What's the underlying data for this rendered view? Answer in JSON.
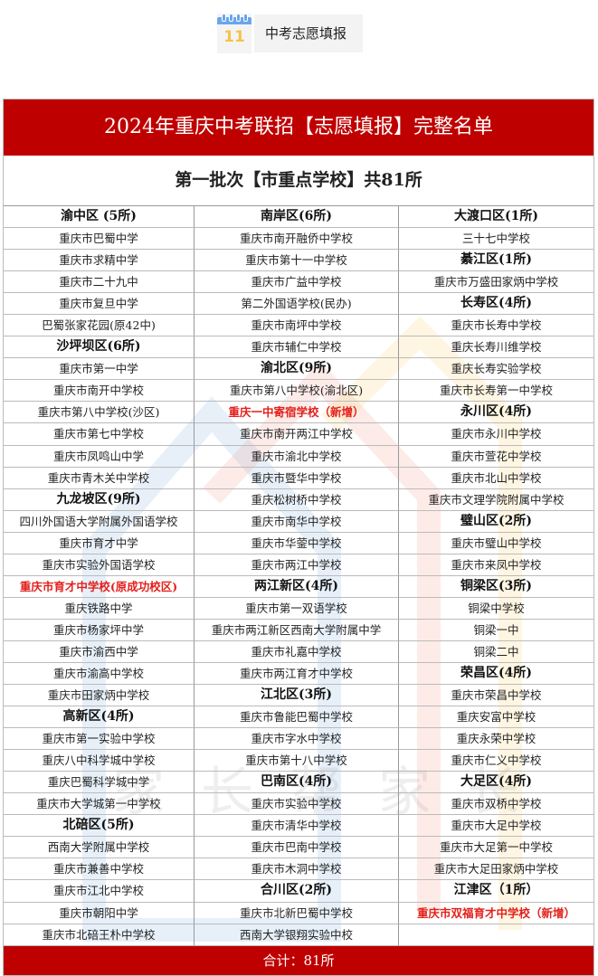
{
  "badge": {
    "icon": "calendar-icon",
    "day": "11",
    "label": "中考志愿填报"
  },
  "title": "2024年重庆中考联招【志愿填报】完整名单",
  "subtitle": "第一批次【市重点学校】共81所",
  "watermark": "家长帮家长",
  "colors": {
    "header_red": "#bf0000",
    "highlight_red": "#e3201b"
  },
  "columns": [
    [
      {
        "t": "渝中区 (5所)",
        "k": "h"
      },
      {
        "t": "重庆市巴蜀中学"
      },
      {
        "t": "重庆市求精中学"
      },
      {
        "t": "重庆市二十九中"
      },
      {
        "t": "重庆市复旦中学"
      },
      {
        "t": "巴蜀张家花园(原42中)"
      },
      {
        "t": "沙坪坝区(6所)",
        "k": "h"
      },
      {
        "t": "重庆市第一中学"
      },
      {
        "t": "重庆市南开中学校"
      },
      {
        "t": "重庆市第八中学校(沙区)"
      },
      {
        "t": "重庆市第七中学校"
      },
      {
        "t": "重庆市凤鸣山中学"
      },
      {
        "t": "重庆市青木关中学校"
      },
      {
        "t": "九龙坡区(9所)",
        "k": "h"
      },
      {
        "t": "四川外国语大学附属外国语学校"
      },
      {
        "t": "重庆市育才中学"
      },
      {
        "t": "重庆市实验外国语学校"
      },
      {
        "t": "重庆市育才中学校(原成功校区)",
        "k": "r"
      },
      {
        "t": "重庆铁路中学"
      },
      {
        "t": "重庆市杨家坪中学"
      },
      {
        "t": "重庆市渝西中学"
      },
      {
        "t": "重庆市渝高中学校"
      },
      {
        "t": "重庆市田家炳中学校"
      },
      {
        "t": "高新区(4所)",
        "k": "h"
      },
      {
        "t": "重庆市第一实验中学校"
      },
      {
        "t": "重庆八中科学城中学校"
      },
      {
        "t": "重庆巴蜀科学城中学"
      },
      {
        "t": "重庆市大学城第一中学校"
      },
      {
        "t": "北碚区(5所)",
        "k": "h"
      },
      {
        "t": "西南大学附属中学校"
      },
      {
        "t": "重庆市兼善中学校"
      },
      {
        "t": "重庆市江北中学校"
      },
      {
        "t": "重庆市朝阳中学"
      },
      {
        "t": "重庆市北碚王朴中学校"
      }
    ],
    [
      {
        "t": "南岸区(6所)",
        "k": "h"
      },
      {
        "t": "重庆市南开融侨中学校"
      },
      {
        "t": "重庆市第十一中学校"
      },
      {
        "t": "重庆市广益中学校"
      },
      {
        "t": "第二外国语学校(民办)"
      },
      {
        "t": "重庆市南坪中学校"
      },
      {
        "t": "重庆市辅仁中学校"
      },
      {
        "t": "渝北区(9所)",
        "k": "h"
      },
      {
        "t": "重庆市第八中学校(渝北区)"
      },
      {
        "t": "重庆一中寄宿学校（新增）",
        "k": "r"
      },
      {
        "t": "重庆市南开两江中学校"
      },
      {
        "t": "重庆市渝北中学校"
      },
      {
        "t": "重庆市暨华中学校"
      },
      {
        "t": "重庆松树桥中学校"
      },
      {
        "t": "重庆市南华中学校"
      },
      {
        "t": "重庆市华蓥中学校"
      },
      {
        "t": "重庆市两江中学校"
      },
      {
        "t": "两江新区(4所)",
        "k": "h"
      },
      {
        "t": "重庆市第一双语学校"
      },
      {
        "t": "重庆市两江新区西南大学附属中学"
      },
      {
        "t": "重庆市礼嘉中学校"
      },
      {
        "t": "重庆市两江育才中学校"
      },
      {
        "t": "江北区(3所)",
        "k": "h"
      },
      {
        "t": "重庆市鲁能巴蜀中学校"
      },
      {
        "t": "重庆市字水中学校"
      },
      {
        "t": "重庆市第十八中学校"
      },
      {
        "t": "巴南区(4所)",
        "k": "h"
      },
      {
        "t": "重庆市实验中学校"
      },
      {
        "t": "重庆市清华中学校"
      },
      {
        "t": "重庆市巴南中学校"
      },
      {
        "t": "重庆市木洞中学校"
      },
      {
        "t": "合川区(2所)",
        "k": "h"
      },
      {
        "t": "重庆市北新巴蜀中学校"
      },
      {
        "t": "西南大学银翔实验中校"
      }
    ],
    [
      {
        "t": "大渡口区(1所)",
        "k": "h"
      },
      {
        "t": "三十七中学校"
      },
      {
        "t": "綦江区(1所)",
        "k": "h"
      },
      {
        "t": "重庆市万盛田家炳中学校"
      },
      {
        "t": "长寿区(4所)",
        "k": "h"
      },
      {
        "t": "重庆市长寿中学校"
      },
      {
        "t": "重庆长寿川维学校"
      },
      {
        "t": "重庆长寿实验学校"
      },
      {
        "t": "重庆市长寿第一中学校"
      },
      {
        "t": "永川区(4所)",
        "k": "h"
      },
      {
        "t": "重庆市永川中学校"
      },
      {
        "t": "重庆市萱花中学校"
      },
      {
        "t": "重庆市北山中学校"
      },
      {
        "t": "重庆市文理学院附属中学校"
      },
      {
        "t": "璧山区(2所)",
        "k": "h"
      },
      {
        "t": "重庆市璧山中学校"
      },
      {
        "t": "重庆市来凤中学校"
      },
      {
        "t": "铜梁区(3所)",
        "k": "h"
      },
      {
        "t": "铜梁中学校"
      },
      {
        "t": "铜梁一中"
      },
      {
        "t": "铜梁二中"
      },
      {
        "t": "荣昌区(4所)",
        "k": "h"
      },
      {
        "t": "重庆市荣昌中学校"
      },
      {
        "t": "重庆安富中学校"
      },
      {
        "t": "重庆永荣中学校"
      },
      {
        "t": "重庆市仁义中学校"
      },
      {
        "t": "大足区(4所)",
        "k": "h"
      },
      {
        "t": "重庆市双桥中学校"
      },
      {
        "t": "重庆市大足中学校"
      },
      {
        "t": "重庆市大足第一中学校"
      },
      {
        "t": "重庆市大足田家炳中学校"
      },
      {
        "t": "江津区（1所）",
        "k": "h"
      },
      {
        "t": "重庆市双福育才中学校（新增）",
        "k": "r"
      },
      {
        "t": ""
      }
    ]
  ],
  "footer": "合计：81所"
}
